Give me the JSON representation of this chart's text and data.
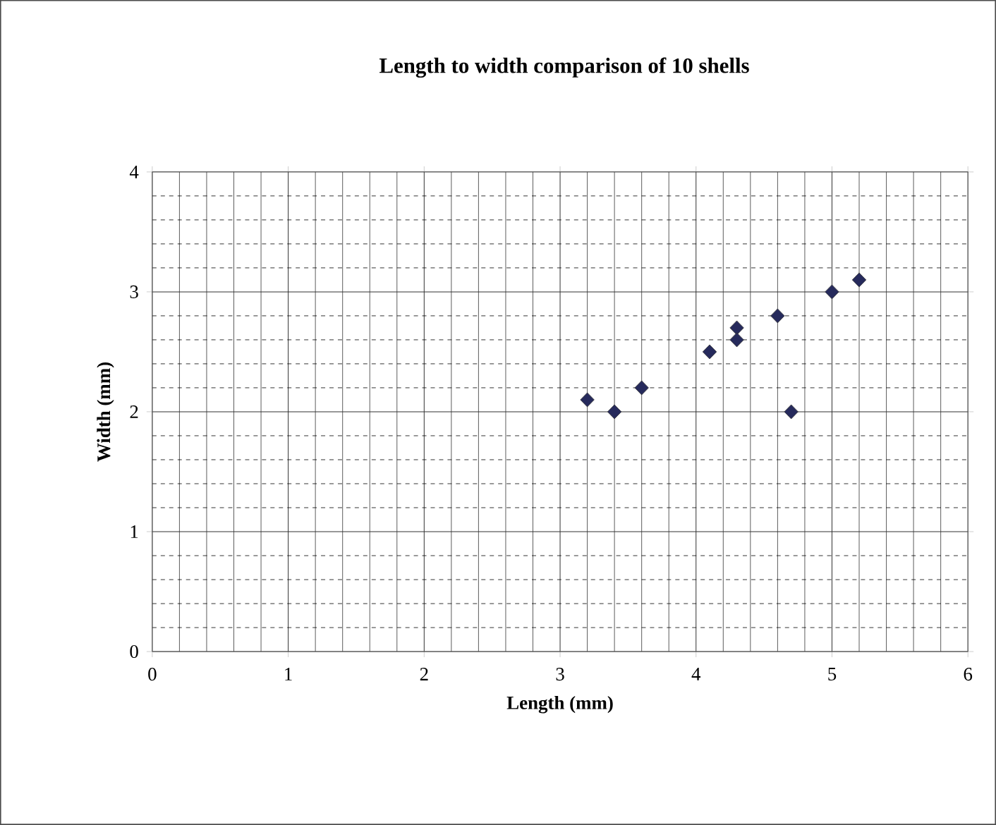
{
  "chart_data": {
    "type": "scatter",
    "title": "Length to width comparison of 10 shells",
    "xlabel": "Length (mm)",
    "ylabel": "Width (mm)",
    "x": [
      3.2,
      3.4,
      3.6,
      4.1,
      4.3,
      4.3,
      4.6,
      4.7,
      5.0,
      5.2
    ],
    "values": [
      2.1,
      2.0,
      2.2,
      2.5,
      2.7,
      2.6,
      2.8,
      2.0,
      3.0,
      3.1
    ],
    "color": "#262a5c",
    "marker": "diamond",
    "grid": true,
    "xlim": [
      0,
      6
    ],
    "xticks": [
      0,
      1,
      2,
      3,
      4,
      5,
      6
    ],
    "ylim": [
      0,
      4
    ],
    "yticks": [
      0,
      1,
      2,
      3,
      4
    ]
  }
}
